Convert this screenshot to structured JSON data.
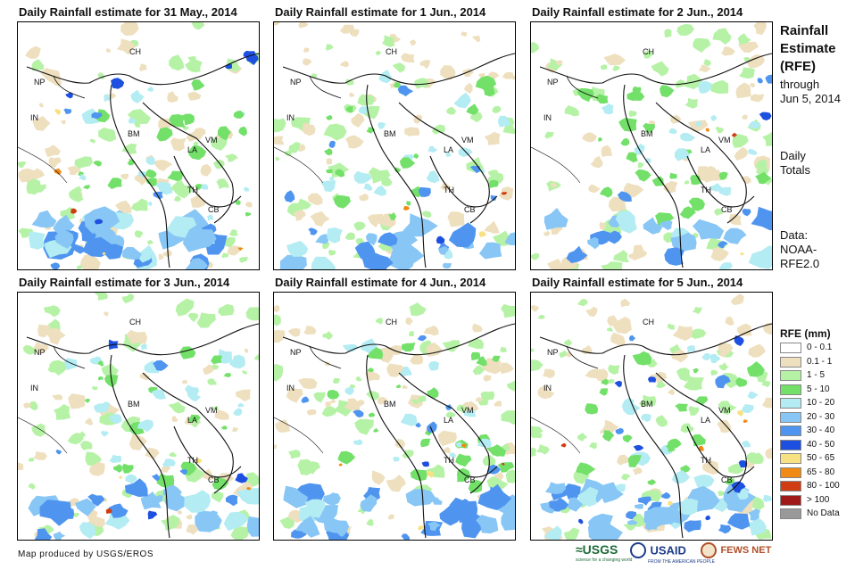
{
  "panels": [
    {
      "title": "Daily Rainfall estimate for 31 May., 2014",
      "intensity": 0.8
    },
    {
      "title": "Daily Rainfall estimate for 1 Jun., 2014",
      "intensity": 0.55
    },
    {
      "title": "Daily Rainfall estimate for 2 Jun., 2014",
      "intensity": 0.45
    },
    {
      "title": "Daily Rainfall estimate for 3 Jun., 2014",
      "intensity": 0.6
    },
    {
      "title": "Daily Rainfall estimate for 4 Jun., 2014",
      "intensity": 0.75
    },
    {
      "title": "Daily Rainfall estimate for 5 Jun., 2014",
      "intensity": 0.9
    }
  ],
  "country_labels": {
    "ch": "CH",
    "np": "NP",
    "in": "IN",
    "bm": "BM",
    "la": "LA",
    "vm": "VM",
    "th": "TH",
    "cb": "CB"
  },
  "sidebar": {
    "title_line1": "Rainfall",
    "title_line2": "Estimate",
    "title_line3": "(RFE)",
    "through_label": "through",
    "through_date": "Jun 5, 2014",
    "totals_line1": "Daily",
    "totals_line2": "Totals",
    "data_line1": "Data:",
    "data_line2": "NOAA-",
    "data_line3": "RFE2.0"
  },
  "legend": {
    "title": "RFE (mm)",
    "items": [
      {
        "label": "0 - 0.1",
        "color": "#ffffff"
      },
      {
        "label": "0.1 - 1",
        "color": "#eedfbe"
      },
      {
        "label": "1 - 5",
        "color": "#b6f2a6"
      },
      {
        "label": "5 - 10",
        "color": "#73e06a"
      },
      {
        "label": "10 - 20",
        "color": "#b3ecf2"
      },
      {
        "label": "20 - 30",
        "color": "#87c6f5"
      },
      {
        "label": "30 - 40",
        "color": "#4f95ef"
      },
      {
        "label": "40 - 50",
        "color": "#1d4fe0"
      },
      {
        "label": "50 - 65",
        "color": "#f8e183"
      },
      {
        "label": "65 - 80",
        "color": "#f08a14"
      },
      {
        "label": "80 - 100",
        "color": "#d13d12"
      },
      {
        "label": "> 100",
        "color": "#a11a1a"
      },
      {
        "label": "No Data",
        "color": "#999999"
      }
    ]
  },
  "footer": {
    "credit": "Map produced by USGS/EROS"
  },
  "logos": {
    "usgs": "≈USGS",
    "usgs_tagline": "science for a changing world",
    "usaid": "USAID",
    "usaid_tagline": "FROM THE AMERICAN PEOPLE",
    "fewsnet": "FEWS NET"
  }
}
